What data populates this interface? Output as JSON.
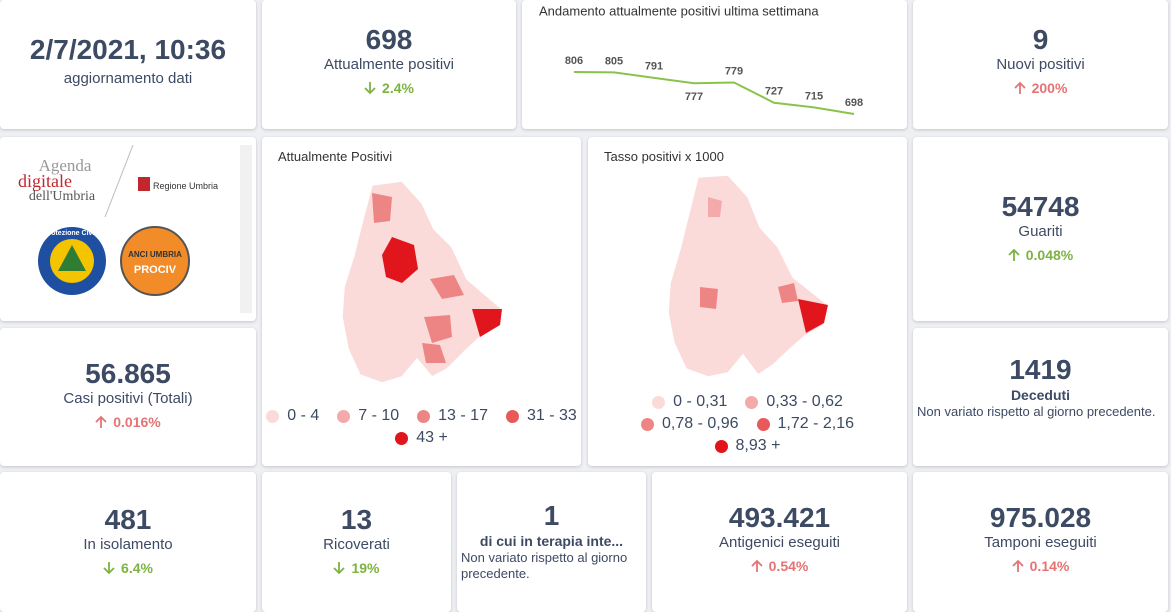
{
  "header": {
    "datetime": "2/7/2021, 10:36",
    "subtitle": "aggiornamento dati"
  },
  "cards": [
    {
      "value": "698",
      "label": "Attualmente positivi",
      "change": "2.4%",
      "trend": "down",
      "color": "#7cb342"
    },
    {
      "value": "9",
      "label": "Nuovi positivi",
      "change": "200%",
      "trend": "up",
      "color": "#e57373"
    },
    {
      "value": "54748",
      "label": "Guariti",
      "change": "0.048%",
      "trend": "up",
      "color": "#7cb342"
    },
    {
      "value": "56.865",
      "label": "Casi positivi (Totali)",
      "change": "0.016%",
      "trend": "up",
      "color": "#e57373"
    },
    {
      "value": "1419",
      "label": "Deceduti",
      "note": "Non variato rispetto al giorno precedente."
    },
    {
      "value": "481",
      "label": "In isolamento",
      "change": "6.4%",
      "trend": "down",
      "color": "#7cb342"
    },
    {
      "value": "13",
      "label": "Ricoverati",
      "change": "19%",
      "trend": "down",
      "color": "#7cb342"
    },
    {
      "value": "1",
      "label": "di cui in terapia inte...",
      "note": "Non variato rispetto al giorno precedente."
    },
    {
      "value": "493.421",
      "label": "Antigenici eseguiti",
      "change": "0.54%",
      "trend": "up",
      "color": "#e57373"
    },
    {
      "value": "975.028",
      "label": "Tamponi eseguiti",
      "change": "0.14%",
      "trend": "up",
      "color": "#e57373"
    }
  ],
  "logos": {
    "agenda_1": "Agenda",
    "agenda_2": "digitale",
    "agenda_3": "dell'Umbria",
    "regione": "Regione Umbria",
    "protezione": "Protezione Civile",
    "anci": "ANCI UMBRIA",
    "prociv": "PROCIV"
  },
  "chart_data": {
    "type": "line",
    "title": "Andamento attualmente positivi ultima settimana",
    "values": [
      806,
      805,
      791,
      777,
      779,
      727,
      715,
      698
    ],
    "color": "#8bc34a"
  },
  "maps": [
    {
      "title": "Attualmente Positivi",
      "legend": [
        {
          "label": "0 - 4",
          "color": "#fbdada"
        },
        {
          "label": "7 - 10",
          "color": "#f4aaaa"
        },
        {
          "label": "13 - 17",
          "color": "#ee8585"
        },
        {
          "label": "31 - 33",
          "color": "#e85a5a"
        },
        {
          "label": "43 +",
          "color": "#e0161c"
        }
      ]
    },
    {
      "title": "Tasso positivi x 1000",
      "legend": [
        {
          "label": "0 - 0,31",
          "color": "#fbdada"
        },
        {
          "label": "0,33 - 0,62",
          "color": "#f4aaaa"
        },
        {
          "label": "0,78 - 0,96",
          "color": "#ee8585"
        },
        {
          "label": "1,72 - 2,16",
          "color": "#e85a5a"
        },
        {
          "label": "8,93 +",
          "color": "#e0161c"
        }
      ]
    }
  ]
}
